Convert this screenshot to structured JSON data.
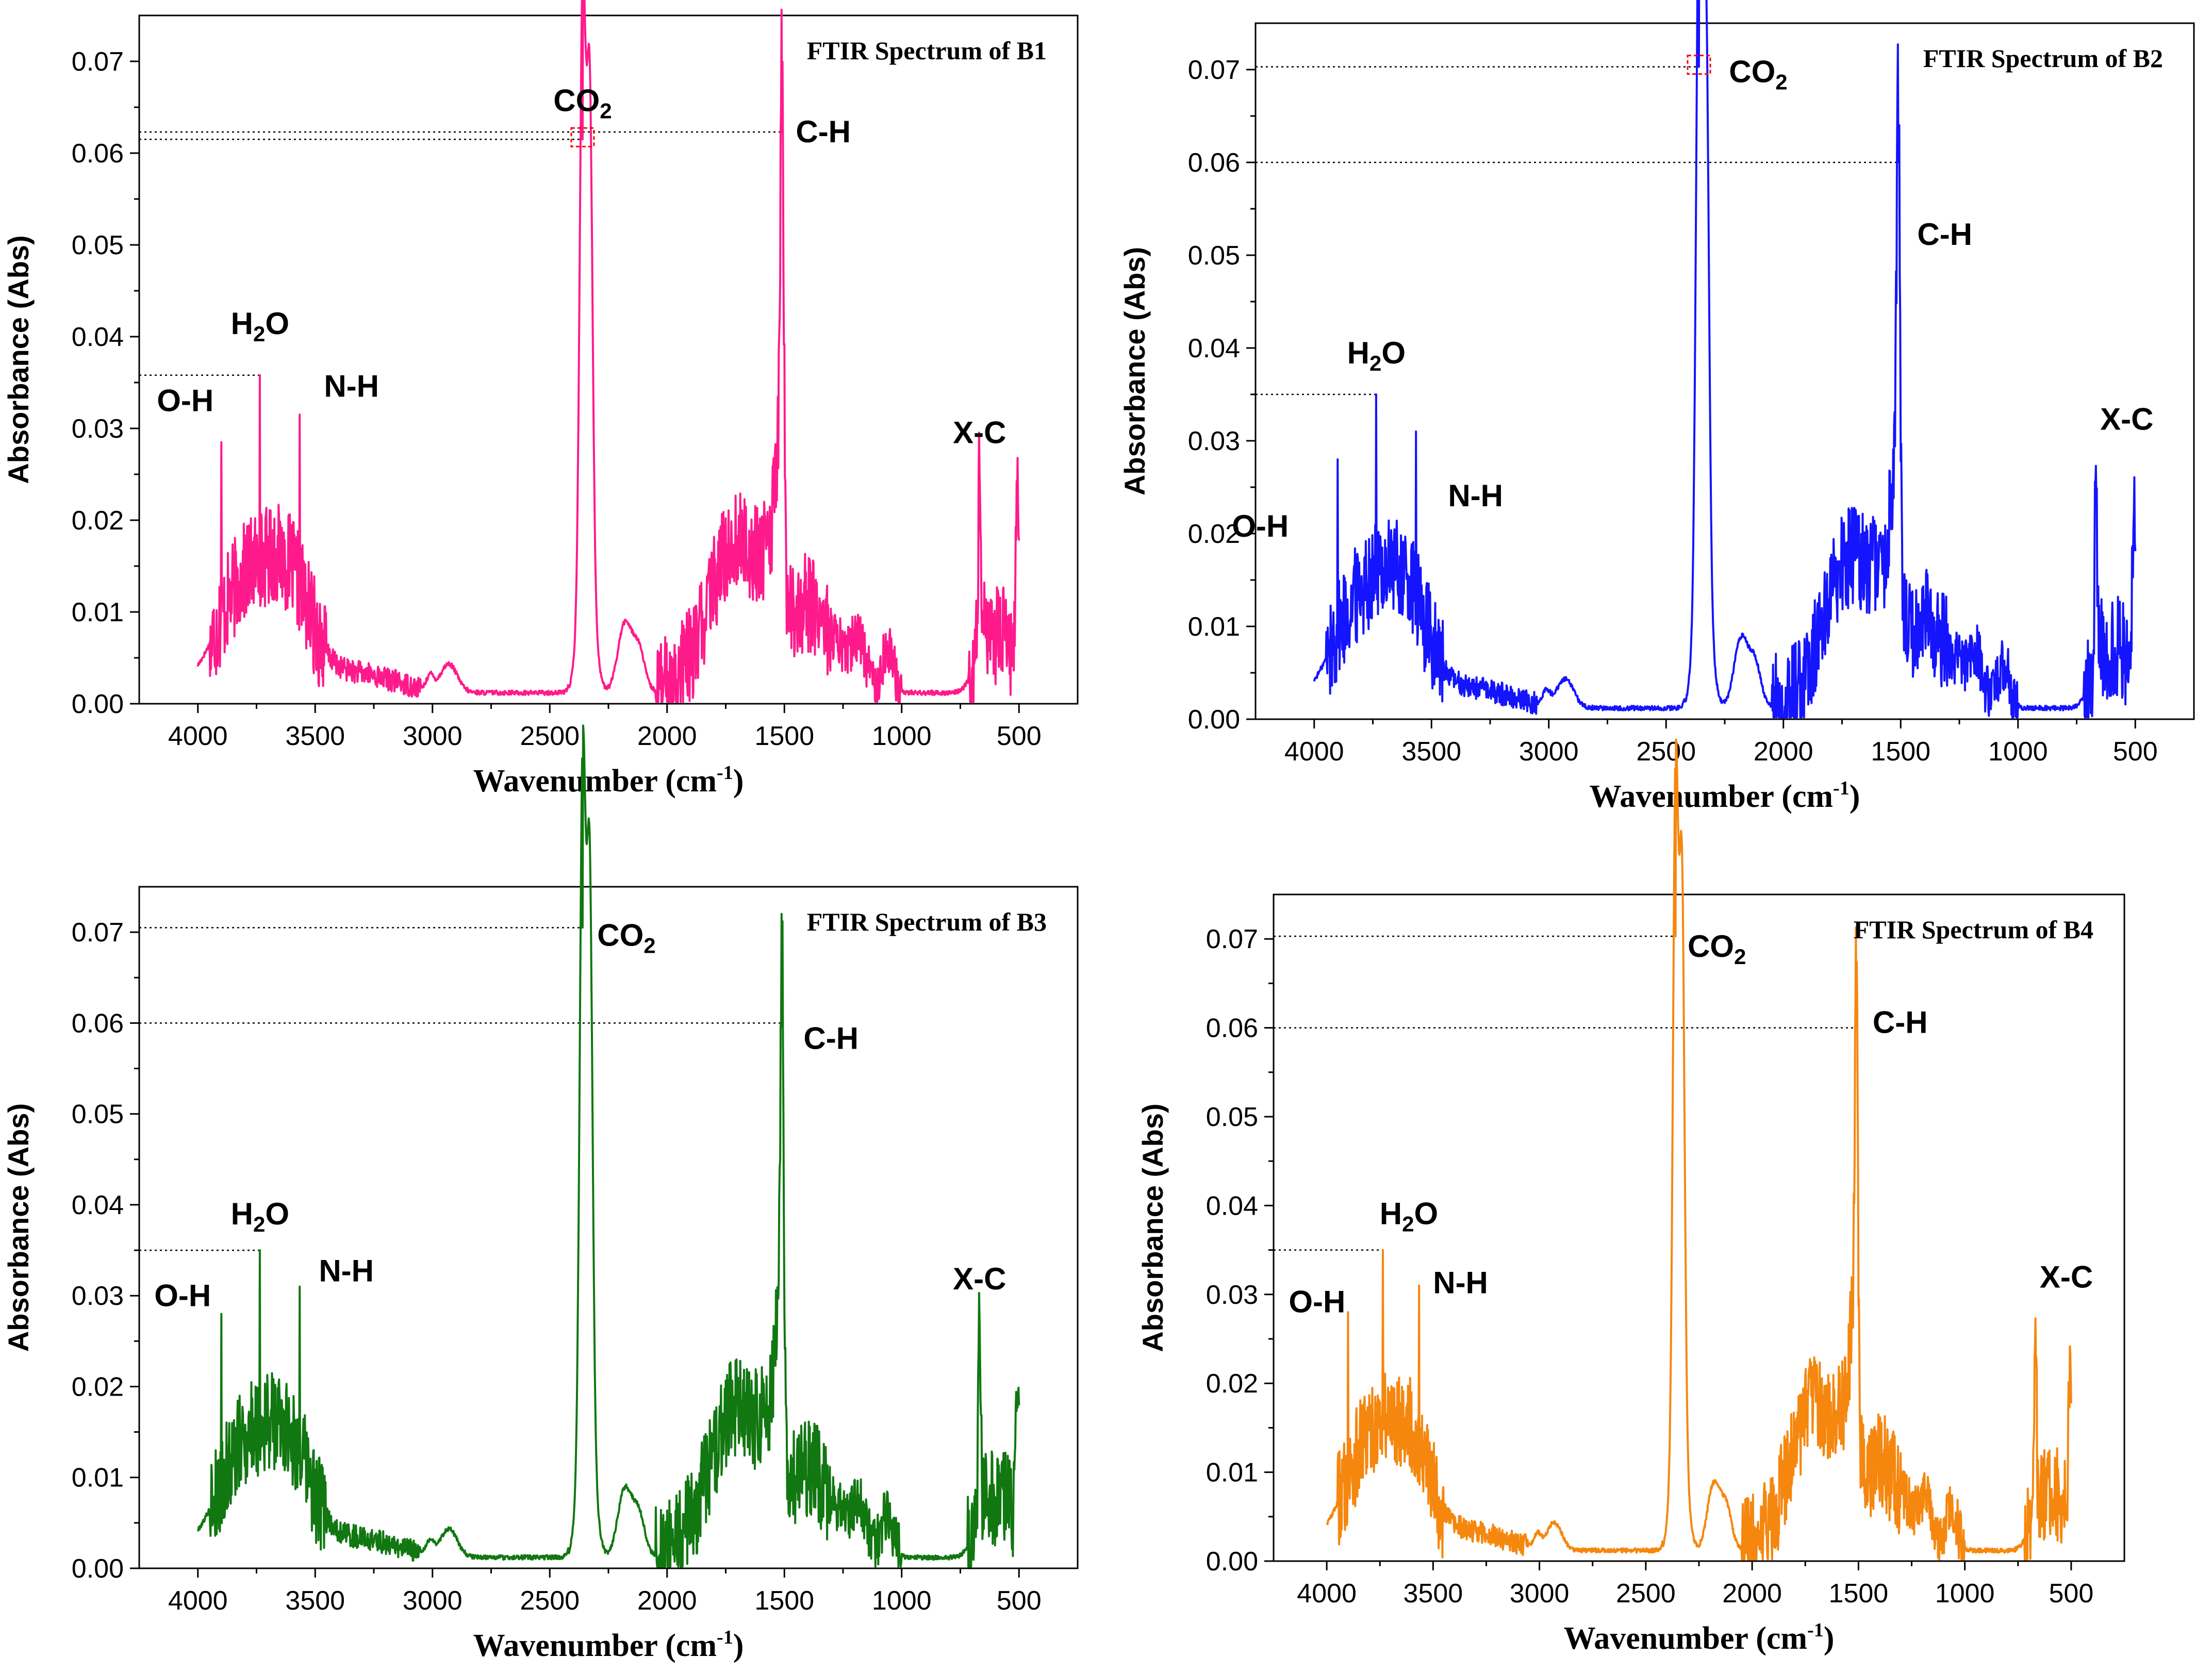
{
  "chart_data": [
    {
      "type": "line",
      "title": "FTIR Spectrum of B1",
      "color": "#ff1a8c",
      "xlabel": "Wavenumber (cm-1)",
      "ylabel": "Absorbance (Abs)",
      "xlim": [
        4250,
        250
      ],
      "ylim": [
        0,
        0.075
      ],
      "xticks": [
        4000,
        3500,
        3000,
        2500,
        2000,
        1500,
        1000,
        500
      ],
      "yticks": [
        0.0,
        0.01,
        0.02,
        0.03,
        0.04,
        0.05,
        0.06,
        0.07
      ],
      "peaks": [
        {
          "name": "O-H",
          "x": 3900,
          "y": 0.0285
        },
        {
          "name": "H2O",
          "x": 3735,
          "y": 0.0358
        },
        {
          "name": "N-H",
          "x": 3565,
          "y": 0.0315
        },
        {
          "name": "CO2",
          "x": 2360,
          "y": 0.0615
        },
        {
          "name": "C-H",
          "x": 1510,
          "y": 0.0623
        },
        {
          "name": "X-C",
          "x": 668,
          "y": 0.0253
        }
      ],
      "box_peak": "CO2",
      "dotted_ref_peaks": [
        "CO2",
        "C-H",
        "H2O"
      ]
    },
    {
      "type": "line",
      "title": "FTIR Spectrum of B2",
      "color": "#1414ff",
      "xlabel": "Wavenumber (cm-1)",
      "ylabel": "Absorbance (Abs)",
      "xlim": [
        4250,
        250
      ],
      "ylim": [
        0,
        0.075
      ],
      "xticks": [
        4000,
        3500,
        3000,
        2500,
        2000,
        1500,
        1000,
        500
      ],
      "yticks": [
        0.0,
        0.01,
        0.02,
        0.03,
        0.04,
        0.05,
        0.06,
        0.07
      ],
      "peaks": [
        {
          "name": "O-H",
          "x": 3900,
          "y": 0.028
        },
        {
          "name": "H2O",
          "x": 3735,
          "y": 0.035
        },
        {
          "name": "N-H",
          "x": 3565,
          "y": 0.031
        },
        {
          "name": "CO2",
          "x": 2360,
          "y": 0.0703
        },
        {
          "name": "C-H",
          "x": 1510,
          "y": 0.06
        },
        {
          "name": "X-C",
          "x": 668,
          "y": 0.0273
        }
      ],
      "box_peak": "CO2",
      "dotted_ref_peaks": [
        "CO2",
        "C-H",
        "H2O"
      ]
    },
    {
      "type": "line",
      "title": "FTIR Spectrum of B3",
      "color": "#117711",
      "xlabel": "Wavenumber (cm-1)",
      "ylabel": "Absorbance (Abs)",
      "xlim": [
        4250,
        250
      ],
      "ylim": [
        0,
        0.075
      ],
      "xticks": [
        4000,
        3500,
        3000,
        2500,
        2000,
        1500,
        1000,
        500
      ],
      "yticks": [
        0.0,
        0.01,
        0.02,
        0.03,
        0.04,
        0.05,
        0.06,
        0.07
      ],
      "peaks": [
        {
          "name": "O-H",
          "x": 3900,
          "y": 0.028
        },
        {
          "name": "H2O",
          "x": 3735,
          "y": 0.035
        },
        {
          "name": "N-H",
          "x": 3565,
          "y": 0.031
        },
        {
          "name": "CO2",
          "x": 2360,
          "y": 0.0705
        },
        {
          "name": "C-H",
          "x": 1510,
          "y": 0.06
        },
        {
          "name": "X-C",
          "x": 668,
          "y": 0.0273
        }
      ],
      "box_peak": null,
      "dotted_ref_peaks": [
        "CO2",
        "C-H",
        "H2O"
      ]
    },
    {
      "type": "line",
      "title": "FTIR Spectrum of B4",
      "color": "#f5870f",
      "xlabel": "Wavenumber (cm-1)",
      "ylabel": "Absorbance (Abs)",
      "xlim": [
        4250,
        250
      ],
      "ylim": [
        0,
        0.075
      ],
      "xticks": [
        4000,
        3500,
        3000,
        2500,
        2000,
        1500,
        1000,
        500
      ],
      "yticks": [
        0.0,
        0.01,
        0.02,
        0.03,
        0.04,
        0.05,
        0.06,
        0.07
      ],
      "peaks": [
        {
          "name": "O-H",
          "x": 3900,
          "y": 0.028
        },
        {
          "name": "H2O",
          "x": 3735,
          "y": 0.035
        },
        {
          "name": "N-H",
          "x": 3565,
          "y": 0.031
        },
        {
          "name": "CO2",
          "x": 2360,
          "y": 0.0703
        },
        {
          "name": "C-H",
          "x": 1510,
          "y": 0.06
        },
        {
          "name": "X-C",
          "x": 668,
          "y": 0.0273
        }
      ],
      "box_peak": null,
      "dotted_ref_peaks": [
        "CO2",
        "C-H",
        "H2O"
      ]
    }
  ]
}
